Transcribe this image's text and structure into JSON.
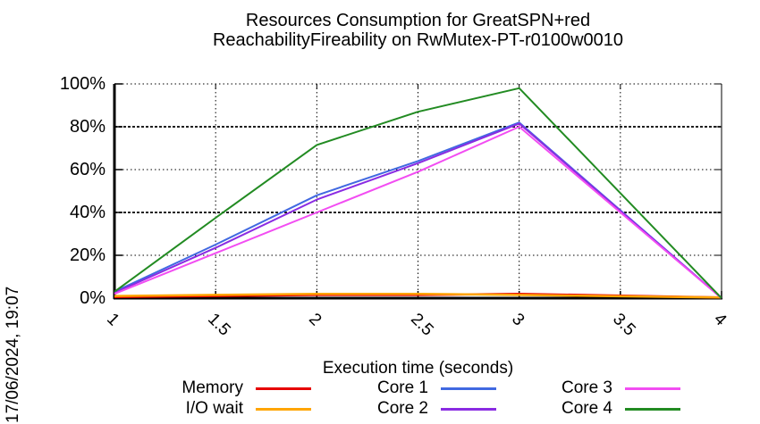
{
  "timestamp_label": "17/06/2024, 19:07",
  "chart_data": {
    "type": "line",
    "title_line1": "Resources Consumption for GreatSPN+red",
    "title_line2": "ReachabilityFireability on RwMutex-PT-r0100w0010",
    "xlabel": "Execution time (seconds)",
    "ylabel": "",
    "xlim": [
      1,
      4
    ],
    "ylim": [
      0,
      100
    ],
    "grid": true,
    "legend_position": "bottom",
    "x_ticks": [
      1,
      1.5,
      2,
      2.5,
      3,
      3.5,
      4
    ],
    "x_tick_labels": [
      "1",
      "1.5",
      "2",
      "2.5",
      "3",
      "3.5",
      "4"
    ],
    "y_ticks": [
      0,
      20,
      40,
      60,
      80,
      100
    ],
    "y_tick_labels": [
      "0%",
      "20%",
      "40%",
      "60%",
      "80%",
      "100%"
    ],
    "x": [
      1,
      1.5,
      2,
      2.5,
      3,
      4
    ],
    "series": [
      {
        "name": "Memory",
        "color": "#e60000",
        "values": [
          0.5,
          1.0,
          1.5,
          1.5,
          2.0,
          0.3
        ]
      },
      {
        "name": "I/O wait",
        "color": "#ffa500",
        "values": [
          1.0,
          1.5,
          2.0,
          2.0,
          1.5,
          0.3
        ]
      },
      {
        "name": "Core 1",
        "color": "#4169e1",
        "values": [
          3.0,
          25.0,
          48.0,
          64.0,
          82.0,
          0.0
        ]
      },
      {
        "name": "Core 2",
        "color": "#8a2be2",
        "values": [
          2.5,
          23.5,
          46.0,
          63.0,
          81.5,
          0.0
        ]
      },
      {
        "name": "Core 3",
        "color": "#f24df2",
        "values": [
          2.0,
          21.0,
          40.0,
          59.0,
          80.0,
          0.0
        ]
      },
      {
        "name": "Core 4",
        "color": "#228b22",
        "values": [
          3.0,
          37.5,
          71.5,
          87.0,
          98.0,
          0.0
        ]
      }
    ]
  }
}
